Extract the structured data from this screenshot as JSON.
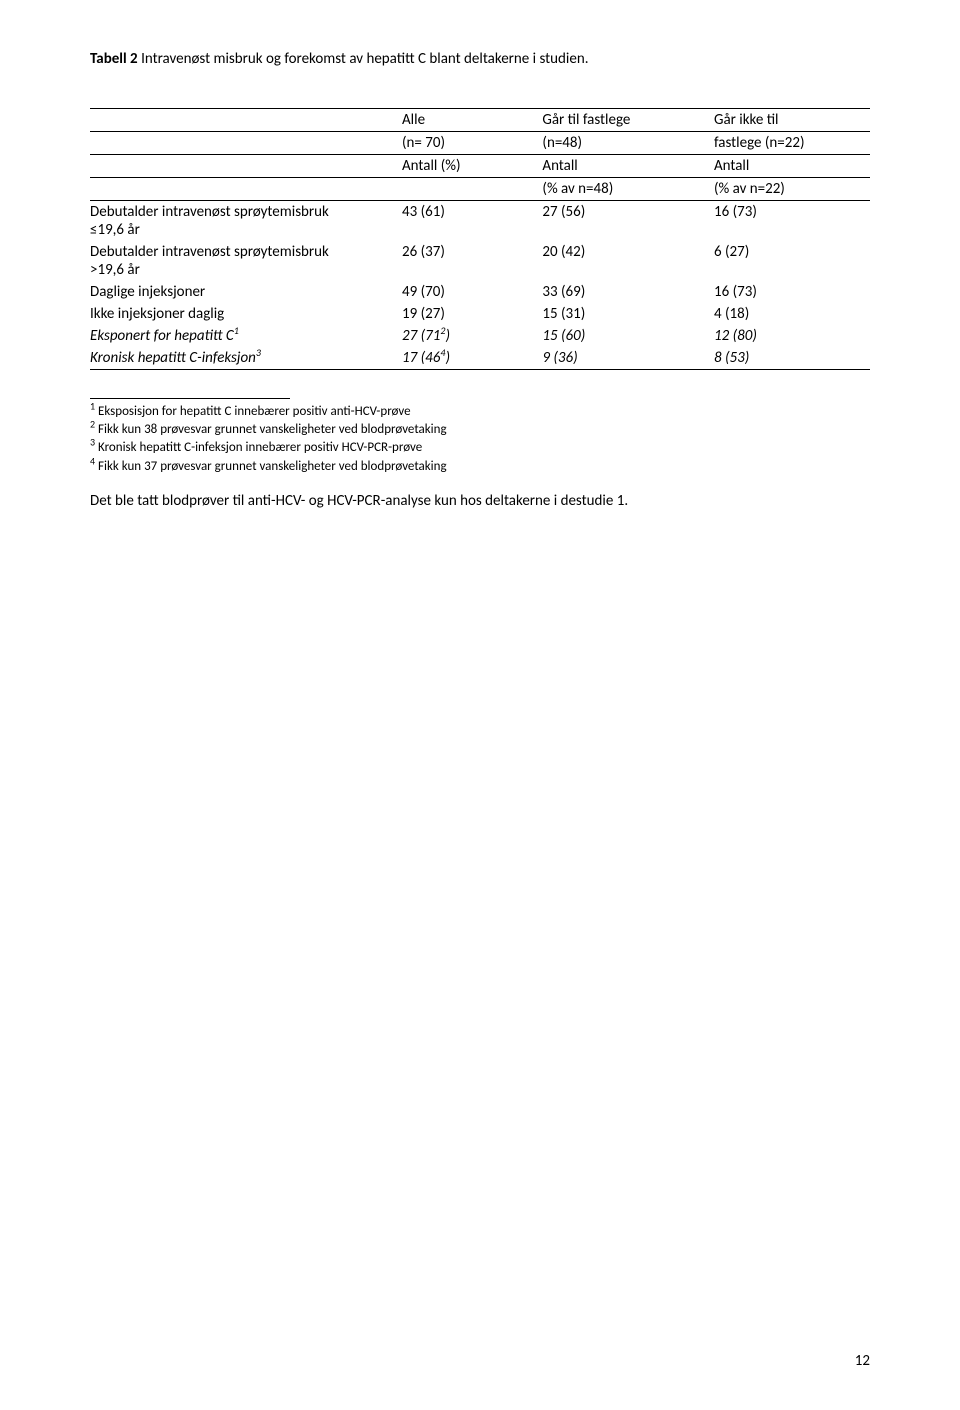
{
  "title": {
    "label": "Tabell 2",
    "text": "Intravenøst misbruk og forekomst av hepatitt C blant deltakerne i studien."
  },
  "table": {
    "header": {
      "col1_line1": "Alle",
      "col1_line2": "(n= 70)",
      "col1_line3": "Antall (%)",
      "col2_line1": "Går til fastlege",
      "col2_line2": "(n=48)",
      "col2_line3": "Antall",
      "col2_line4": "(% av n=48)",
      "col3_line1": "Går ikke til",
      "col3_line2": "fastlege (n=22)",
      "col3_line3": "Antall",
      "col3_line4": "(% av n=22)"
    },
    "rows": [
      {
        "label_a": "Debutalder intravenøst sprøytemisbruk",
        "label_b": "≤19,6 år",
        "c1": "43 (61)",
        "c2": "27 (56)",
        "c3": "16 (73)",
        "italic": false,
        "sup": ""
      },
      {
        "label_a": "Debutalder intravenøst sprøytemisbruk",
        "label_b": ">19,6 år",
        "c1": "26 (37)",
        "c2": "20 (42)",
        "c3": "6 (27)",
        "italic": false,
        "sup": ""
      },
      {
        "label_a": "Daglige injeksjoner",
        "label_b": "",
        "c1": "49 (70)",
        "c2": "33 (69)",
        "c3": "16 (73)",
        "italic": false,
        "sup": ""
      },
      {
        "label_a": "Ikke injeksjoner daglig",
        "label_b": "",
        "c1": "19 (27)",
        "c2": "15 (31)",
        "c3": "4 (18)",
        "italic": false,
        "sup": ""
      },
      {
        "label_a": "Eksponert for hepatitt C",
        "label_b": "",
        "c1_a": "27 (71",
        "c1_sup": "2",
        "c1_b": ")",
        "c2": "15 (60)",
        "c3": "12 (80)",
        "italic": true,
        "sup": "1"
      },
      {
        "label_a": "Kronisk hepatitt C-infeksjon",
        "label_b": "",
        "c1_a": "17 (46",
        "c1_sup": "4",
        "c1_b": ")",
        "c2": "9 (36)",
        "c3": "8 (53)",
        "italic": true,
        "sup": "3"
      }
    ]
  },
  "footnotes": {
    "f1_sup": "1",
    "f1": " Eksposisjon for hepatitt C innebærer positiv anti-HCV-prøve",
    "f2_sup": "2",
    "f2": " Fikk kun 38 prøvesvar grunnet vanskeligheter ved blodprøvetaking",
    "f3_sup": "3",
    "f3": " Kronisk hepatitt C-infeksjon innebærer positiv HCV-PCR-prøve",
    "f4_sup": "4",
    "f4": " Fikk kun 37 prøvesvar grunnet vanskeligheter ved blodprøvetaking"
  },
  "closing": "Det ble tatt blodprøver til anti-HCV- og HCV-PCR-analyse kun hos deltakerne i destudie 1.",
  "page_number": "12"
}
